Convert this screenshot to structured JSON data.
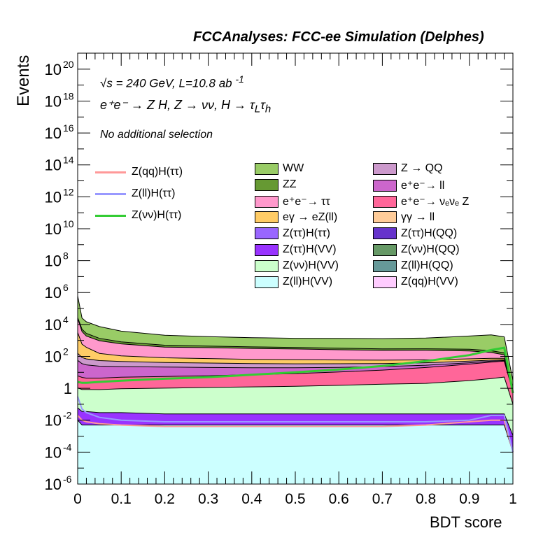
{
  "banner": "FCCAnalyses: FCC-ee Simulation (Delphes)",
  "annotations": {
    "energy": "s = 240 GeV, L=10.8 ab",
    "energy_sqrt": "√",
    "energy_exp": "-1",
    "process": "e⁺e⁻ → Z H, Z → νν, H → τ",
    "process_sub1": "L",
    "process_tau": "τ",
    "process_sub2": "h",
    "selection": "No additional selection"
  },
  "colors": {
    "WW": "#99cc66",
    "ZZ": "#669933",
    "ee_tautau": "#ff99cc",
    "egamma": "#ffcc66",
    "Ztautau_Htautau": "#9966ff",
    "Ztautau_HVV": "#9933ff",
    "Znunu_HVV": "#ccffcc",
    "Zll_HVV": "#ccffff",
    "Z_QQ": "#cc99cc",
    "ee_ll": "#cc66cc",
    "ee_nunuZ": "#ff6699",
    "gammagamma_ll": "#ffcc99",
    "Ztautau_HQQ": "#6633cc",
    "Znunu_HQQ": "#669966",
    "Zll_HQQ": "#669999",
    "Zqq_HVV": "#ffccff",
    "sig_qq": "#ff9999",
    "sig_ll": "#9999ff",
    "sig_nunu": "#33cc33"
  },
  "chart_data": {
    "type": "area",
    "title": "FCCAnalyses: FCC-ee Simulation (Delphes)",
    "xlabel": "BDT score",
    "ylabel": "Events",
    "xlim": [
      0,
      1
    ],
    "ylim": [
      1e-06,
      1e+21
    ],
    "log_y": true,
    "grid": false,
    "x_ticks": [
      "0",
      "0.1",
      "0.2",
      "0.3",
      "0.4",
      "0.5",
      "0.6",
      "0.7",
      "0.8",
      "0.9",
      "1"
    ],
    "y_ticks": [
      {
        "base": "10",
        "exp": "-6"
      },
      {
        "base": "10",
        "exp": "-4"
      },
      {
        "base": "10",
        "exp": "-2"
      },
      {
        "base": "1",
        "exp": ""
      },
      {
        "base": "10",
        "exp": "2"
      },
      {
        "base": "10",
        "exp": "4"
      },
      {
        "base": "10",
        "exp": "6"
      },
      {
        "base": "10",
        "exp": "8"
      },
      {
        "base": "10",
        "exp": "10"
      },
      {
        "base": "10",
        "exp": "12"
      },
      {
        "base": "10",
        "exp": "14"
      },
      {
        "base": "10",
        "exp": "16"
      },
      {
        "base": "10",
        "exp": "18"
      },
      {
        "base": "10",
        "exp": "20"
      }
    ],
    "x": [
      0.0,
      0.01,
      0.02,
      0.05,
      0.1,
      0.2,
      0.3,
      0.4,
      0.5,
      0.6,
      0.7,
      0.8,
      0.9,
      0.95,
      0.98,
      1.0
    ],
    "stack_series": [
      {
        "name": "WW",
        "values": [
          600000.0,
          20000.0,
          12000.0,
          6000.0,
          3000.0,
          1600.0,
          1300.0,
          1100.0,
          1000.0,
          1000.0,
          1000.0,
          1100.0,
          1600.0,
          2000.0,
          1500.0,
          2
        ]
      },
      {
        "name": "ZZ",
        "values": [
          4000.0,
          1500.0,
          900,
          400,
          200,
          120,
          90,
          80,
          70,
          70,
          60,
          60,
          60,
          50,
          40,
          0.5
        ]
      },
      {
        "name": "e⁺e⁻→ ττ",
        "values": [
          20000.0,
          3000.0,
          1500.0,
          800,
          500,
          300,
          280,
          250,
          230,
          200,
          180,
          180,
          150,
          100,
          50,
          0
        ]
      },
      {
        "name": "eγ → eZ(ll)",
        "values": [
          3000.0,
          500,
          300,
          100,
          60,
          40,
          35,
          30,
          28,
          25,
          22,
          20,
          20,
          18,
          15,
          0
        ]
      },
      {
        "name": "Z → QQ",
        "values": [
          100,
          50,
          40,
          30,
          25,
          20,
          18,
          16,
          15,
          14,
          13,
          12,
          10,
          8,
          6,
          0
        ]
      },
      {
        "name": "e⁺e⁻→ ll",
        "values": [
          50,
          30,
          25,
          20,
          18,
          16,
          14,
          12,
          11,
          10,
          9,
          8,
          7,
          6,
          5,
          0
        ]
      },
      {
        "name": "e⁺e⁻→ νₑνₑ Z",
        "values": [
          5,
          4,
          3.5,
          3.5,
          4,
          4.5,
          5,
          6,
          7,
          9,
          12,
          18,
          30,
          40,
          45,
          0.5
        ]
      },
      {
        "name": "Z(νν)H(VV)",
        "values": [
          1,
          0.8,
          0.8,
          0.8,
          0.9,
          1,
          1.1,
          1.2,
          1.3,
          1.5,
          1.8,
          2,
          3,
          4,
          5,
          0.1
        ]
      },
      {
        "name": "Z(ττ)H(VV)",
        "values": [
          0.05,
          0.03,
          0.03,
          0.025,
          0.025,
          0.02,
          0.02,
          0.02,
          0.02,
          0.02,
          0.02,
          0.02,
          0.02,
          0.02,
          0.02,
          0.001
        ]
      },
      {
        "name": "Z(ll)H(VV)",
        "values": [
          0.01,
          0.005,
          0.005,
          0.005,
          0.005,
          0.005,
          0.005,
          0.005,
          0.005,
          0.005,
          0.005,
          0.005,
          0.005,
          0.005,
          0.005,
          0.0001
        ]
      }
    ],
    "line_series": [
      {
        "name": "Z(qq)H(ττ)",
        "values": [
          0.02,
          0.01,
          0.008,
          0.006,
          0.005,
          0.004,
          0.004,
          0.004,
          0.004,
          0.004,
          0.004,
          0.005,
          0.008,
          0.01,
          0.01,
          0.0001
        ]
      },
      {
        "name": "Z(ll)H(ττ)",
        "values": [
          0.3,
          0.05,
          0.03,
          0.015,
          0.01,
          0.008,
          0.008,
          0.008,
          0.008,
          0.008,
          0.008,
          0.008,
          0.01,
          0.02,
          0.02,
          0.0001
        ]
      },
      {
        "name": "Z(νν)H(ττ)",
        "values": [
          2.5,
          2.2,
          2.2,
          2.5,
          3,
          4,
          5,
          7,
          10,
          15,
          25,
          50,
          120,
          250,
          350,
          0.5
        ]
      }
    ],
    "legend": {
      "position": "top",
      "lines": [
        "Z(qq)H(ττ)",
        "Z(ll)H(ττ)",
        "Z(νν)H(ττ)"
      ],
      "col1": [
        "WW",
        "ZZ",
        "e⁺e⁻→ ττ",
        "eγ → eZ(ll)",
        "Z(ττ)H(ττ)",
        "Z(ττ)H(VV)",
        "Z(νν)H(VV)",
        "Z(ll)H(VV)"
      ],
      "col2": [
        "Z → QQ",
        "e⁺e⁻→ ll",
        "e⁺e⁻→ νₑνₑ Z",
        "γγ → ll",
        "Z(ττ)H(QQ)",
        "Z(νν)H(QQ)",
        "Z(ll)H(QQ)",
        "Z(qq)H(VV)"
      ]
    }
  }
}
